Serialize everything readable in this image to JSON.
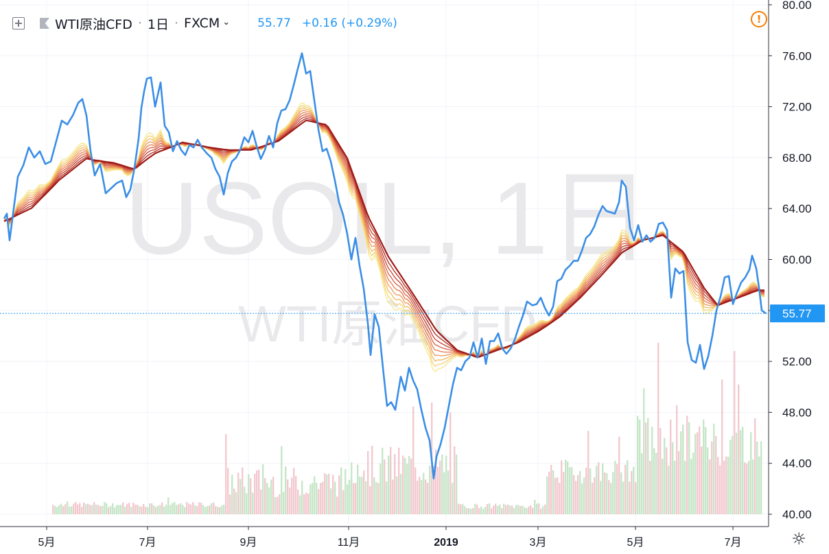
{
  "header": {
    "symbol": "WTI原油CFD",
    "interval": "1日",
    "exchange": "FXCM",
    "price": "55.77",
    "change": "+0.16 (+0.29%)"
  },
  "watermark": {
    "line1": "USOIL, 1日",
    "line2": "WTI原油CFD"
  },
  "icons": {
    "add_symbol": "plus-square-icon",
    "flag": "flag-icon",
    "alert": "alert-icon",
    "settings": "gear-icon",
    "alert_glyph": "!"
  },
  "colors": {
    "price_line": "#3a8ee6",
    "ribbon_fast": "#f5e27a",
    "ribbon_slow": "#9e1b16",
    "volume_up": "#c6e6c8",
    "volume_down": "#f2c9cf",
    "last_price_label": "#2196f3"
  },
  "chart_data": {
    "type": "line",
    "x_axis_labels": [
      "5月",
      "7月",
      "9月",
      "11月",
      "2019",
      "3月",
      "5月",
      "7月"
    ],
    "ylim": [
      39.0,
      80.5
    ],
    "y_ticks": [
      "80.00",
      "76.00",
      "72.00",
      "68.00",
      "64.00",
      "60.00",
      "56.00",
      "52.00",
      "48.00",
      "44.00",
      "40.00"
    ],
    "last_price_label": "55.77",
    "series": [
      {
        "name": "WTI原油CFD",
        "values": [
          [
            0,
            63.2
          ],
          [
            4,
            63.6
          ],
          [
            8,
            61.5
          ],
          [
            14,
            64.0
          ],
          [
            20,
            66.5
          ],
          [
            28,
            67.4
          ],
          [
            36,
            68.8
          ],
          [
            44,
            68.0
          ],
          [
            52,
            68.5
          ],
          [
            60,
            67.5
          ],
          [
            68,
            67.7
          ],
          [
            76,
            69.3
          ],
          [
            84,
            70.9
          ],
          [
            92,
            70.6
          ],
          [
            100,
            71.3
          ],
          [
            108,
            72.3
          ],
          [
            114,
            72.6
          ],
          [
            120,
            71.3
          ],
          [
            126,
            68.5
          ],
          [
            132,
            66.6
          ],
          [
            140,
            67.5
          ],
          [
            148,
            65.2
          ],
          [
            156,
            65.6
          ],
          [
            164,
            66.0
          ],
          [
            172,
            66.2
          ],
          [
            178,
            64.9
          ],
          [
            184,
            65.5
          ],
          [
            190,
            67.2
          ],
          [
            196,
            69.5
          ],
          [
            200,
            71.9
          ],
          [
            204,
            73.2
          ],
          [
            208,
            74.2
          ],
          [
            214,
            74.3
          ],
          [
            220,
            72.0
          ],
          [
            228,
            73.9
          ],
          [
            234,
            70.5
          ],
          [
            240,
            70.0
          ],
          [
            246,
            68.5
          ],
          [
            252,
            69.3
          ],
          [
            258,
            68.6
          ],
          [
            264,
            68.2
          ],
          [
            270,
            69.0
          ],
          [
            276,
            68.8
          ],
          [
            282,
            69.4
          ],
          [
            288,
            68.8
          ],
          [
            296,
            68.3
          ],
          [
            302,
            68.0
          ],
          [
            308,
            67.1
          ],
          [
            314,
            66.5
          ],
          [
            320,
            65.1
          ],
          [
            326,
            66.8
          ],
          [
            332,
            67.7
          ],
          [
            338,
            68.0
          ],
          [
            344,
            68.6
          ],
          [
            350,
            69.6
          ],
          [
            356,
            69.2
          ],
          [
            362,
            70.1
          ],
          [
            368,
            68.9
          ],
          [
            374,
            67.9
          ],
          [
            380,
            68.6
          ],
          [
            386,
            69.7
          ],
          [
            392,
            68.8
          ],
          [
            398,
            70.7
          ],
          [
            404,
            71.7
          ],
          [
            410,
            71.8
          ],
          [
            416,
            72.5
          ],
          [
            422,
            73.7
          ],
          [
            428,
            75.0
          ],
          [
            434,
            76.2
          ],
          [
            440,
            74.6
          ],
          [
            446,
            74.8
          ],
          [
            452,
            72.5
          ],
          [
            458,
            70.2
          ],
          [
            464,
            68.5
          ],
          [
            470,
            68.7
          ],
          [
            476,
            67.7
          ],
          [
            482,
            66.2
          ],
          [
            488,
            64.5
          ],
          [
            494,
            63.5
          ],
          [
            500,
            62.0
          ],
          [
            506,
            60.0
          ],
          [
            512,
            61.7
          ],
          [
            518,
            59.5
          ],
          [
            524,
            57.7
          ],
          [
            530,
            55.0
          ],
          [
            534,
            52.5
          ],
          [
            540,
            55.7
          ],
          [
            546,
            54.7
          ],
          [
            552,
            51.5
          ],
          [
            558,
            48.5
          ],
          [
            564,
            48.8
          ],
          [
            570,
            48.2
          ],
          [
            578,
            50.8
          ],
          [
            584,
            49.7
          ],
          [
            590,
            51.5
          ],
          [
            596,
            50.5
          ],
          [
            602,
            49.8
          ],
          [
            608,
            48.2
          ],
          [
            614,
            46.8
          ],
          [
            620,
            45.8
          ],
          [
            626,
            42.8
          ],
          [
            630,
            44.5
          ],
          [
            636,
            45.5
          ],
          [
            642,
            46.8
          ],
          [
            648,
            48.5
          ],
          [
            654,
            50.2
          ],
          [
            660,
            51.5
          ],
          [
            666,
            51.3
          ],
          [
            672,
            52.0
          ],
          [
            678,
            52.3
          ],
          [
            684,
            53.5
          ],
          [
            690,
            52.3
          ],
          [
            696,
            53.8
          ],
          [
            702,
            51.8
          ],
          [
            708,
            53.6
          ],
          [
            714,
            53.6
          ],
          [
            720,
            54.2
          ],
          [
            726,
            53.0
          ],
          [
            732,
            52.6
          ],
          [
            738,
            53.0
          ],
          [
            744,
            53.7
          ],
          [
            750,
            54.7
          ],
          [
            756,
            55.6
          ],
          [
            762,
            56.7
          ],
          [
            770,
            56.4
          ],
          [
            776,
            56.5
          ],
          [
            782,
            57.0
          ],
          [
            788,
            56.2
          ],
          [
            794,
            55.6
          ],
          [
            800,
            56.3
          ],
          [
            806,
            58.3
          ],
          [
            812,
            58.5
          ],
          [
            818,
            59.2
          ],
          [
            824,
            59.5
          ],
          [
            830,
            59.9
          ],
          [
            836,
            59.9
          ],
          [
            842,
            60.7
          ],
          [
            848,
            61.7
          ],
          [
            854,
            62.0
          ],
          [
            860,
            62.6
          ],
          [
            866,
            63.5
          ],
          [
            872,
            64.2
          ],
          [
            878,
            63.8
          ],
          [
            884,
            63.7
          ],
          [
            890,
            63.6
          ],
          [
            896,
            64.5
          ],
          [
            900,
            66.2
          ],
          [
            906,
            65.7
          ],
          [
            912,
            62.5
          ],
          [
            918,
            61.5
          ],
          [
            924,
            62.7
          ],
          [
            930,
            61.4
          ],
          [
            936,
            61.9
          ],
          [
            942,
            61.4
          ],
          [
            948,
            61.7
          ],
          [
            954,
            62.8
          ],
          [
            960,
            62.9
          ],
          [
            966,
            62.3
          ],
          [
            972,
            57.0
          ],
          [
            978,
            59.3
          ],
          [
            984,
            58.9
          ],
          [
            990,
            59.1
          ],
          [
            996,
            53.5
          ],
          [
            1002,
            52.1
          ],
          [
            1008,
            51.9
          ],
          [
            1014,
            53.3
          ],
          [
            1020,
            51.4
          ],
          [
            1026,
            52.4
          ],
          [
            1032,
            54.0
          ],
          [
            1038,
            56.0
          ],
          [
            1044,
            57.1
          ],
          [
            1050,
            58.6
          ],
          [
            1056,
            58.7
          ],
          [
            1062,
            56.5
          ],
          [
            1068,
            57.4
          ],
          [
            1074,
            58.2
          ],
          [
            1080,
            58.6
          ],
          [
            1086,
            59.2
          ],
          [
            1090,
            60.3
          ],
          [
            1096,
            59.3
          ],
          [
            1100,
            57.8
          ],
          [
            1104,
            56.0
          ],
          [
            1110,
            55.77
          ]
        ]
      }
    ],
    "ribbon_centers": [
      [
        0,
        63.0
      ],
      [
        40,
        64.0
      ],
      [
        80,
        66.2
      ],
      [
        120,
        67.9
      ],
      [
        160,
        67.6
      ],
      [
        190,
        67.1
      ],
      [
        220,
        68.3
      ],
      [
        260,
        69.2
      ],
      [
        300,
        68.8
      ],
      [
        330,
        68.6
      ],
      [
        360,
        68.6
      ],
      [
        400,
        69.3
      ],
      [
        440,
        70.9
      ],
      [
        470,
        70.6
      ],
      [
        500,
        68.0
      ],
      [
        530,
        63.5
      ],
      [
        560,
        60.3
      ],
      [
        600,
        57.0
      ],
      [
        630,
        54.5
      ],
      [
        660,
        52.9
      ],
      [
        690,
        52.3
      ],
      [
        720,
        52.9
      ],
      [
        750,
        53.5
      ],
      [
        780,
        54.4
      ],
      [
        810,
        55.5
      ],
      [
        840,
        57.0
      ],
      [
        870,
        58.7
      ],
      [
        900,
        60.5
      ],
      [
        930,
        61.5
      ],
      [
        960,
        61.9
      ],
      [
        990,
        60.6
      ],
      [
        1020,
        57.8
      ],
      [
        1040,
        56.4
      ],
      [
        1060,
        56.8
      ],
      [
        1080,
        57.2
      ],
      [
        1100,
        57.6
      ],
      [
        1110,
        57.6
      ]
    ]
  }
}
